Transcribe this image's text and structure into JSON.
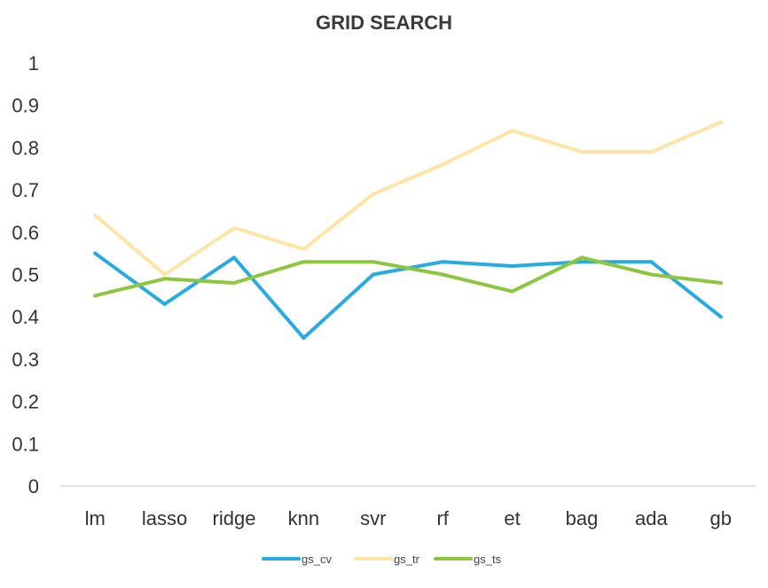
{
  "chart_data": {
    "type": "line",
    "title": "GRID SEARCH",
    "xlabel": "",
    "ylabel": "",
    "categories": [
      "lm",
      "lasso",
      "ridge",
      "knn",
      "svr",
      "rf",
      "et",
      "bag",
      "ada",
      "gb"
    ],
    "ylim": [
      0,
      1
    ],
    "yticks": [
      "0",
      "0.1",
      "0.2",
      "0.3",
      "0.4",
      "0.5",
      "0.6",
      "0.7",
      "0.8",
      "0.9",
      "1"
    ],
    "grid": false,
    "legend_position": "bottom",
    "series": [
      {
        "name": "gs_cv",
        "color": "#29abe2",
        "values": [
          0.55,
          0.43,
          0.54,
          0.35,
          0.5,
          0.53,
          0.52,
          0.53,
          0.53,
          0.4
        ]
      },
      {
        "name": "gs_tr",
        "color": "#fce5a6",
        "values": [
          0.64,
          0.5,
          0.61,
          0.56,
          0.69,
          0.76,
          0.84,
          0.79,
          0.79,
          0.86
        ]
      },
      {
        "name": "gs_ts",
        "color": "#8dc63f",
        "values": [
          0.45,
          0.49,
          0.48,
          0.53,
          0.53,
          0.5,
          0.46,
          0.54,
          0.5,
          0.48
        ]
      }
    ]
  }
}
